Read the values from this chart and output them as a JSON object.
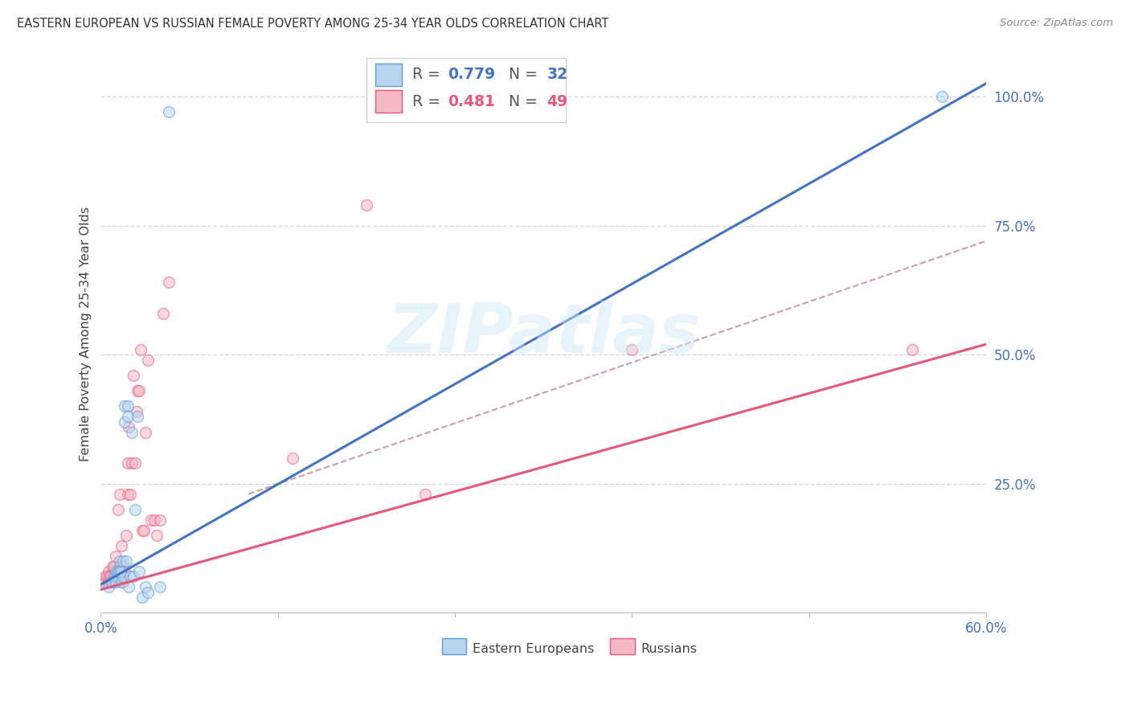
{
  "title": "EASTERN EUROPEAN VS RUSSIAN FEMALE POVERTY AMONG 25-34 YEAR OLDS CORRELATION CHART",
  "source": "Source: ZipAtlas.com",
  "ylabel": "Female Poverty Among 25-34 Year Olds",
  "xlim": [
    0.0,
    0.6
  ],
  "ylim": [
    0.0,
    1.08
  ],
  "yticks_right": [
    0.0,
    0.25,
    0.5,
    0.75,
    1.0
  ],
  "yticklabels_right": [
    "",
    "25.0%",
    "50.0%",
    "75.0%",
    "100.0%"
  ],
  "background_color": "#ffffff",
  "grid_color": "#d8d8d8",
  "eastern_color": "#b8d4ee",
  "russian_color": "#f5b8c4",
  "eastern_edge_color": "#5b9bd5",
  "russian_edge_color": "#e8567a",
  "eastern_line_color": "#4472c4",
  "russian_line_color": "#e8567a",
  "diagonal_line_color": "#c8a0aa",
  "R_eastern": 0.779,
  "N_eastern": 32,
  "R_russian": 0.481,
  "N_russian": 49,
  "eastern_x": [
    0.005,
    0.007,
    0.008,
    0.009,
    0.01,
    0.01,
    0.011,
    0.012,
    0.013,
    0.013,
    0.014,
    0.014,
    0.015,
    0.015,
    0.016,
    0.016,
    0.017,
    0.018,
    0.018,
    0.019,
    0.02,
    0.021,
    0.022,
    0.023,
    0.025,
    0.026,
    0.028,
    0.03,
    0.032,
    0.04,
    0.046,
    0.57
  ],
  "eastern_y": [
    0.05,
    0.06,
    0.06,
    0.07,
    0.06,
    0.08,
    0.07,
    0.08,
    0.08,
    0.1,
    0.06,
    0.08,
    0.07,
    0.1,
    0.37,
    0.4,
    0.1,
    0.38,
    0.4,
    0.05,
    0.07,
    0.35,
    0.07,
    0.2,
    0.38,
    0.08,
    0.03,
    0.05,
    0.04,
    0.05,
    0.97,
    1.0
  ],
  "russian_x": [
    0.002,
    0.003,
    0.004,
    0.005,
    0.005,
    0.006,
    0.007,
    0.008,
    0.008,
    0.009,
    0.009,
    0.01,
    0.01,
    0.011,
    0.012,
    0.012,
    0.013,
    0.013,
    0.014,
    0.015,
    0.015,
    0.016,
    0.017,
    0.018,
    0.018,
    0.019,
    0.02,
    0.021,
    0.022,
    0.023,
    0.024,
    0.025,
    0.026,
    0.027,
    0.028,
    0.029,
    0.03,
    0.032,
    0.034,
    0.036,
    0.038,
    0.04,
    0.042,
    0.046,
    0.13,
    0.18,
    0.22,
    0.36,
    0.55
  ],
  "russian_y": [
    0.06,
    0.07,
    0.07,
    0.06,
    0.08,
    0.07,
    0.07,
    0.06,
    0.09,
    0.07,
    0.09,
    0.07,
    0.11,
    0.08,
    0.07,
    0.2,
    0.09,
    0.23,
    0.13,
    0.06,
    0.09,
    0.08,
    0.15,
    0.29,
    0.23,
    0.36,
    0.23,
    0.29,
    0.46,
    0.29,
    0.39,
    0.43,
    0.43,
    0.51,
    0.16,
    0.16,
    0.35,
    0.49,
    0.18,
    0.18,
    0.15,
    0.18,
    0.58,
    0.64,
    0.3,
    0.79,
    0.23,
    0.51,
    0.51
  ],
  "marker_size": 100,
  "marker_alpha": 0.55,
  "watermark_text": "ZIPatlas",
  "eastern_line_x": [
    0.0,
    0.6
  ],
  "eastern_line_y": [
    0.055,
    1.025
  ],
  "russian_line_x": [
    0.0,
    0.6
  ],
  "russian_line_y": [
    0.045,
    0.52
  ],
  "diag_line_x": [
    0.1,
    0.6
  ],
  "diag_line_y": [
    0.23,
    0.72
  ]
}
